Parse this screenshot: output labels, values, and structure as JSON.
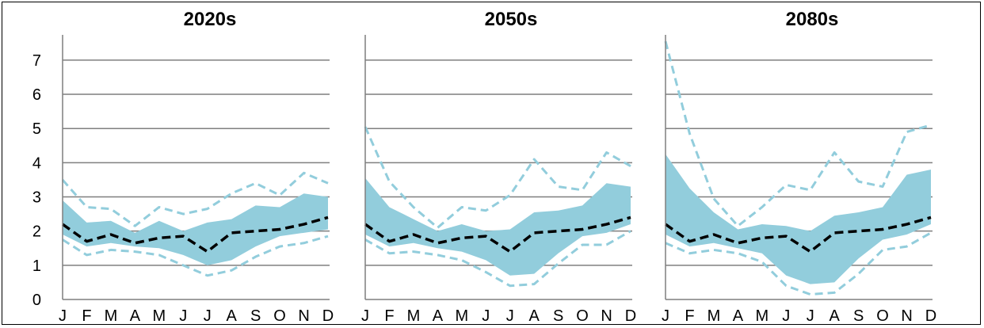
{
  "chart_data": [
    {
      "type": "area",
      "title": "2020s",
      "categories": [
        "J",
        "F",
        "M",
        "A",
        "M",
        "J",
        "J",
        "A",
        "S",
        "O",
        "N",
        "D"
      ],
      "yticks": [
        0,
        1,
        2,
        3,
        4,
        5,
        6,
        7
      ],
      "ylim": [
        0,
        7.6
      ],
      "grid": true,
      "series": [
        {
          "role": "band_upper",
          "values": [
            2.9,
            2.25,
            2.3,
            1.95,
            2.3,
            2.0,
            2.25,
            2.35,
            2.75,
            2.7,
            3.1,
            3.0
          ]
        },
        {
          "role": "band_lower",
          "values": [
            1.9,
            1.55,
            1.65,
            1.55,
            1.5,
            1.3,
            1.0,
            1.15,
            1.55,
            1.85,
            1.95,
            2.05
          ]
        },
        {
          "role": "median",
          "values": [
            2.2,
            1.7,
            1.9,
            1.65,
            1.8,
            1.85,
            1.4,
            1.95,
            2.0,
            2.05,
            2.2,
            2.4
          ]
        },
        {
          "role": "dashed_upper",
          "values": [
            3.5,
            2.7,
            2.65,
            2.15,
            2.7,
            2.5,
            2.65,
            3.1,
            3.4,
            3.05,
            3.7,
            3.4
          ]
        },
        {
          "role": "dashed_lower",
          "values": [
            1.75,
            1.3,
            1.45,
            1.4,
            1.3,
            1.0,
            0.7,
            0.85,
            1.25,
            1.55,
            1.65,
            1.85
          ]
        }
      ]
    },
    {
      "type": "area",
      "title": "2050s",
      "categories": [
        "J",
        "F",
        "M",
        "A",
        "M",
        "J",
        "J",
        "A",
        "S",
        "O",
        "N",
        "D"
      ],
      "yticks": [
        0,
        1,
        2,
        3,
        4,
        5,
        6,
        7
      ],
      "ylim": [
        0,
        7.6
      ],
      "grid": true,
      "series": [
        {
          "role": "band_upper",
          "values": [
            3.55,
            2.7,
            2.35,
            2.0,
            2.2,
            2.0,
            2.05,
            2.55,
            2.6,
            2.75,
            3.4,
            3.3
          ]
        },
        {
          "role": "band_lower",
          "values": [
            1.9,
            1.55,
            1.65,
            1.5,
            1.4,
            1.15,
            0.7,
            0.75,
            1.35,
            1.85,
            1.95,
            2.2
          ]
        },
        {
          "role": "median",
          "values": [
            2.2,
            1.7,
            1.9,
            1.65,
            1.8,
            1.85,
            1.4,
            1.95,
            2.0,
            2.05,
            2.2,
            2.4
          ]
        },
        {
          "role": "dashed_upper",
          "values": [
            5.05,
            3.45,
            2.7,
            2.1,
            2.7,
            2.6,
            3.05,
            4.1,
            3.3,
            3.2,
            4.3,
            3.9
          ]
        },
        {
          "role": "dashed_lower",
          "values": [
            1.75,
            1.35,
            1.4,
            1.3,
            1.15,
            0.8,
            0.4,
            0.45,
            1.05,
            1.6,
            1.6,
            2.0
          ]
        }
      ]
    },
    {
      "type": "area",
      "title": "2080s",
      "categories": [
        "J",
        "F",
        "M",
        "A",
        "M",
        "J",
        "J",
        "A",
        "S",
        "O",
        "N",
        "D"
      ],
      "yticks": [
        0,
        1,
        2,
        3,
        4,
        5,
        6,
        7
      ],
      "ylim": [
        0,
        7.6
      ],
      "grid": true,
      "series": [
        {
          "role": "band_upper",
          "values": [
            4.25,
            3.25,
            2.55,
            2.05,
            2.2,
            2.15,
            2.0,
            2.45,
            2.55,
            2.7,
            3.65,
            3.8
          ]
        },
        {
          "role": "band_lower",
          "values": [
            1.9,
            1.55,
            1.65,
            1.5,
            1.35,
            0.7,
            0.45,
            0.5,
            1.2,
            1.75,
            1.9,
            2.2
          ]
        },
        {
          "role": "median",
          "values": [
            2.2,
            1.7,
            1.9,
            1.65,
            1.8,
            1.85,
            1.4,
            1.95,
            2.0,
            2.05,
            2.2,
            2.4
          ]
        },
        {
          "role": "dashed_upper",
          "values": [
            7.55,
            4.85,
            2.95,
            2.15,
            2.7,
            3.35,
            3.2,
            4.3,
            3.45,
            3.3,
            4.9,
            5.1
          ]
        },
        {
          "role": "dashed_lower",
          "values": [
            1.65,
            1.35,
            1.45,
            1.35,
            1.1,
            0.4,
            0.15,
            0.2,
            0.75,
            1.45,
            1.55,
            1.95
          ]
        }
      ]
    }
  ],
  "colors": {
    "band": "#92CDDC",
    "dashed": "#92CDDC",
    "median": "#000000",
    "grid": "#7F7F7F",
    "axis": "#7F7F7F"
  }
}
